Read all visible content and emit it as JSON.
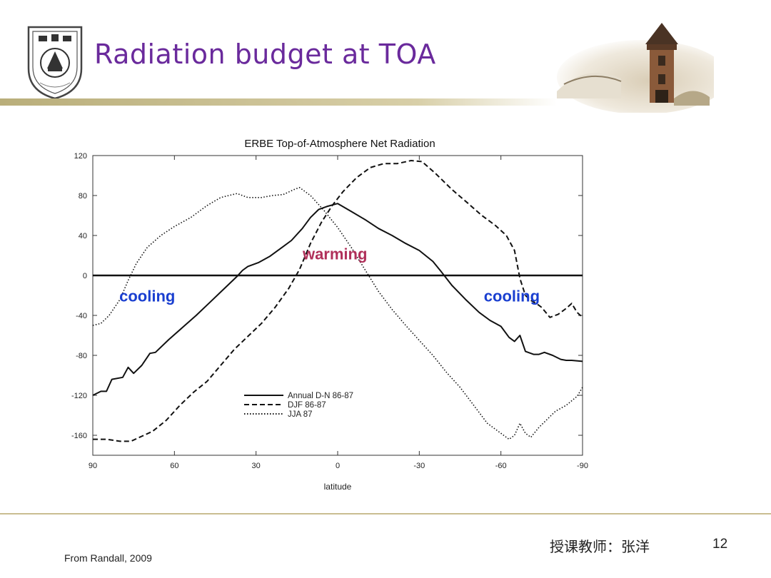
{
  "slide": {
    "title": "Radiation budget at TOA",
    "title_color": "#6a2a9c",
    "logo_icon": "university-seal-icon",
    "decor_icon": "campus-tower-icon"
  },
  "footer": {
    "source": "From Randall, 2009",
    "teacher": "授课教师：张洋",
    "page_number": "12"
  },
  "chart_data": {
    "type": "line",
    "title": "ERBE Top-of-Atmosphere Net Radiation",
    "xlabel": "latitude",
    "ylabel": "",
    "xlim": [
      90,
      -90
    ],
    "ylim": [
      -180,
      120
    ],
    "x_ticks": [
      90,
      60,
      30,
      0,
      -30,
      -60,
      -90
    ],
    "x_tick_labels": [
      "90",
      "60",
      "30",
      "0",
      "-30",
      "-60",
      "-90"
    ],
    "y_ticks": [
      120,
      80,
      40,
      0,
      -40,
      -80,
      -120,
      -160
    ],
    "y_tick_labels": [
      "120",
      "80",
      "40",
      "0",
      "-40",
      "-80",
      "-120",
      "-160"
    ],
    "grid": false,
    "legend_position": "bottom-center",
    "series": [
      {
        "name": "Annual D-N 86-87",
        "style": "solid",
        "points": [
          [
            90,
            -120
          ],
          [
            87,
            -116
          ],
          [
            85,
            -116
          ],
          [
            83,
            -104
          ],
          [
            79,
            -102
          ],
          [
            77,
            -92
          ],
          [
            75,
            -98
          ],
          [
            72,
            -90
          ],
          [
            69,
            -78
          ],
          [
            67,
            -77
          ],
          [
            62,
            -64
          ],
          [
            57,
            -52
          ],
          [
            52,
            -40
          ],
          [
            47,
            -27
          ],
          [
            42,
            -14
          ],
          [
            37,
            -1
          ],
          [
            35,
            5
          ],
          [
            33,
            9
          ],
          [
            29,
            13
          ],
          [
            25,
            19
          ],
          [
            20,
            29
          ],
          [
            17,
            35
          ],
          [
            13,
            47
          ],
          [
            10,
            58
          ],
          [
            7,
            66
          ],
          [
            4,
            69
          ],
          [
            0,
            72
          ],
          [
            -5,
            64
          ],
          [
            -10,
            56
          ],
          [
            -15,
            47
          ],
          [
            -20,
            40
          ],
          [
            -25,
            32
          ],
          [
            -30,
            25
          ],
          [
            -35,
            14
          ],
          [
            -38,
            4
          ],
          [
            -42,
            -10
          ],
          [
            -47,
            -24
          ],
          [
            -52,
            -37
          ],
          [
            -56,
            -45
          ],
          [
            -60,
            -51
          ],
          [
            -63,
            -62
          ],
          [
            -65,
            -66
          ],
          [
            -67,
            -60
          ],
          [
            -69,
            -76
          ],
          [
            -72,
            -79
          ],
          [
            -74,
            -79
          ],
          [
            -76,
            -77
          ],
          [
            -79,
            -80
          ],
          [
            -82,
            -84
          ],
          [
            -84,
            -85
          ],
          [
            -86,
            -85
          ],
          [
            -90,
            -86
          ]
        ]
      },
      {
        "name": "DJF 86-87",
        "style": "dashed",
        "points": [
          [
            90,
            -164
          ],
          [
            85,
            -164
          ],
          [
            80,
            -166
          ],
          [
            76,
            -166
          ],
          [
            72,
            -161
          ],
          [
            68,
            -156
          ],
          [
            63,
            -145
          ],
          [
            58,
            -130
          ],
          [
            53,
            -117
          ],
          [
            48,
            -106
          ],
          [
            43,
            -90
          ],
          [
            38,
            -74
          ],
          [
            33,
            -61
          ],
          [
            28,
            -48
          ],
          [
            23,
            -32
          ],
          [
            18,
            -13
          ],
          [
            14,
            6
          ],
          [
            10,
            32
          ],
          [
            6,
            53
          ],
          [
            2,
            70
          ],
          [
            -2,
            84
          ],
          [
            -7,
            98
          ],
          [
            -12,
            108
          ],
          [
            -17,
            112
          ],
          [
            -22,
            112
          ],
          [
            -27,
            115
          ],
          [
            -31,
            114
          ],
          [
            -36,
            102
          ],
          [
            -42,
            86
          ],
          [
            -48,
            72
          ],
          [
            -53,
            60
          ],
          [
            -58,
            50
          ],
          [
            -62,
            40
          ],
          [
            -65,
            25
          ],
          [
            -67,
            -3
          ],
          [
            -69,
            -20
          ],
          [
            -71,
            -25
          ],
          [
            -73,
            -28
          ],
          [
            -75,
            -32
          ],
          [
            -78,
            -42
          ],
          [
            -81,
            -39
          ],
          [
            -84,
            -33
          ],
          [
            -86,
            -28
          ],
          [
            -88,
            -37
          ],
          [
            -90,
            -42
          ]
        ]
      },
      {
        "name": "JJA 87",
        "style": "dotted",
        "points": [
          [
            90,
            -50
          ],
          [
            87,
            -48
          ],
          [
            84,
            -40
          ],
          [
            80,
            -24
          ],
          [
            77,
            -5
          ],
          [
            74,
            12
          ],
          [
            70,
            28
          ],
          [
            65,
            40
          ],
          [
            60,
            49
          ],
          [
            54,
            58
          ],
          [
            48,
            70
          ],
          [
            43,
            78
          ],
          [
            37,
            82
          ],
          [
            33,
            78
          ],
          [
            28,
            78
          ],
          [
            24,
            80
          ],
          [
            20,
            81
          ],
          [
            16,
            86
          ],
          [
            14,
            88
          ],
          [
            10,
            80
          ],
          [
            5,
            65
          ],
          [
            0,
            48
          ],
          [
            -5,
            28
          ],
          [
            -10,
            6
          ],
          [
            -15,
            -16
          ],
          [
            -20,
            -34
          ],
          [
            -25,
            -50
          ],
          [
            -30,
            -65
          ],
          [
            -35,
            -80
          ],
          [
            -40,
            -97
          ],
          [
            -45,
            -112
          ],
          [
            -50,
            -130
          ],
          [
            -55,
            -148
          ],
          [
            -60,
            -158
          ],
          [
            -63,
            -164
          ],
          [
            -65,
            -160
          ],
          [
            -67,
            -148
          ],
          [
            -69,
            -158
          ],
          [
            -71,
            -162
          ],
          [
            -74,
            -152
          ],
          [
            -77,
            -144
          ],
          [
            -80,
            -136
          ],
          [
            -84,
            -130
          ],
          [
            -88,
            -121
          ],
          [
            -90,
            -112
          ]
        ]
      }
    ],
    "annotations": [
      {
        "text": "warming",
        "x": 1,
        "y": 16,
        "color": "#b0305a"
      },
      {
        "text": "cooling",
        "x": 70,
        "y": -26,
        "color": "#1a3fd0"
      },
      {
        "text": "cooling",
        "x": -64,
        "y": -26,
        "color": "#1a3fd0"
      }
    ]
  }
}
